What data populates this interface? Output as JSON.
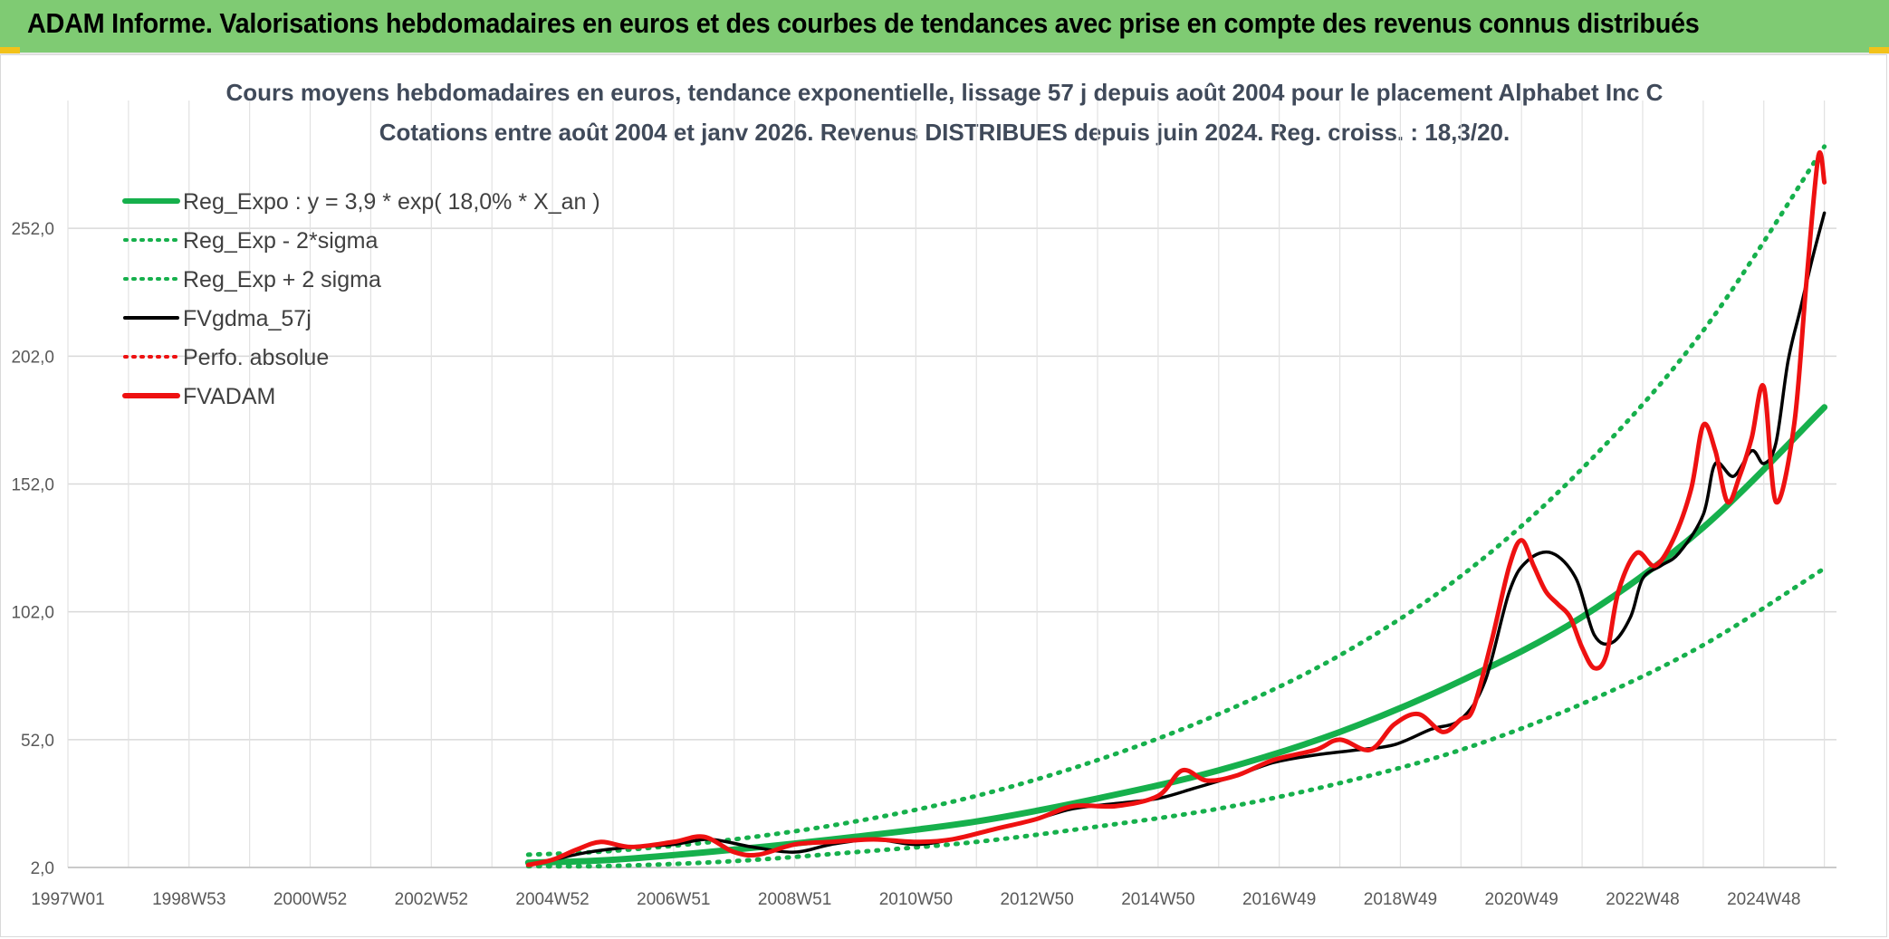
{
  "header": {
    "title": "ADAM Informe. Valorisations hebdomadaires en euros et des courbes de tendances avec prise en compte des revenus connus distribués"
  },
  "colors": {
    "header_bg": "#7fcb73",
    "green": "#16b04c",
    "black": "#000000",
    "red": "#ee1111",
    "corner": "#f2c21a"
  },
  "chart_data": {
    "type": "line",
    "title": "Cours moyens hebdomadaires en euros, tendance exponentielle, lissage 57 j depuis août 2004 pour le placement Alphabet Inc C",
    "subtitle": "Cotations entre août 2004 et janv 2026. Revenus DISTRIBUES depuis juin 2024. Reg. croiss. : 18,3/20.",
    "xlabel": "",
    "ylabel": "",
    "x_range": [
      1997.0,
      2026.2
    ],
    "ylim": [
      2,
      302
    ],
    "y_ticks": [
      2,
      52,
      102,
      152,
      202,
      252
    ],
    "y_tick_labels": [
      "2,0",
      "52,0",
      "102,0",
      "152,0",
      "202,0",
      "252,0"
    ],
    "x_ticks": [
      1997.0,
      1999.0,
      2001.0,
      2003.0,
      2005.0,
      2007.0,
      2009.0,
      2011.0,
      2013.0,
      2015.0,
      2017.0,
      2019.0,
      2021.0,
      2023.0,
      2025.0
    ],
    "x_tick_labels": [
      "1997W01",
      "1998W53",
      "2000W52",
      "2002W52",
      "2004W52",
      "2006W51",
      "2008W51",
      "2010W50",
      "2012W50",
      "2014W50",
      "2016W49",
      "2018W49",
      "2020W49",
      "2022W48",
      "2024W48"
    ],
    "grid": true,
    "legend_position": "top-left",
    "legend": [
      {
        "label": "Reg_Expo : y = 3,9 * exp( 18,0% *  X_an )",
        "color": "#16b04c",
        "style": "solid-thick"
      },
      {
        "label": "Reg_Exp - 2*sigma",
        "color": "#16b04c",
        "style": "dotted"
      },
      {
        "label": "Reg_Exp + 2 sigma",
        "color": "#16b04c",
        "style": "dotted"
      },
      {
        "label": "FVgdma_57j",
        "color": "#000000",
        "style": "solid"
      },
      {
        "label": "Perfo. absolue",
        "color": "#ee1111",
        "style": "dotted"
      },
      {
        "label": "FVADAM",
        "color": "#ee1111",
        "style": "solid-thick"
      }
    ],
    "series": [
      {
        "name": "Reg_Expo",
        "x": [
          2004.6,
          2006,
          2008,
          2010,
          2012,
          2014,
          2016,
          2018,
          2020,
          2022,
          2024,
          2026.0
        ],
        "values": [
          3.9,
          5,
          9,
          14,
          20,
          29,
          40,
          55,
          75,
          100,
          135,
          182
        ]
      },
      {
        "name": "Reg_Exp - 2*sigma",
        "x": [
          2004.6,
          2006,
          2008,
          2010,
          2012,
          2014,
          2016,
          2018,
          2020,
          2022,
          2024,
          2026.0
        ],
        "values": [
          2.5,
          2.6,
          4.5,
          8,
          12,
          18,
          25,
          35,
          48,
          66,
          89,
          119
        ]
      },
      {
        "name": "Reg_Exp + 2 sigma",
        "x": [
          2004.6,
          2006,
          2008,
          2010,
          2012,
          2014,
          2016,
          2018,
          2020,
          2022,
          2024,
          2026.0
        ],
        "values": [
          7,
          8.5,
          13,
          20,
          30,
          44,
          62,
          85,
          116,
          158,
          212,
          284
        ]
      },
      {
        "name": "FVgdma_57j",
        "x": [
          2004.6,
          2005,
          2005.6,
          2006.3,
          2007,
          2007.6,
          2008.3,
          2009,
          2009.6,
          2010.3,
          2011,
          2011.6,
          2012.3,
          2013,
          2013.6,
          2014.3,
          2015,
          2015.6,
          2016.3,
          2016.9,
          2017.6,
          2018.3,
          2018.9,
          2019.5,
          2020.0,
          2020.4,
          2020.8,
          2021.1,
          2021.5,
          2021.9,
          2022.2,
          2022.5,
          2022.8,
          2023.0,
          2023.3,
          2023.6,
          2024.0,
          2024.2,
          2024.5,
          2024.8,
          2025.0,
          2025.2,
          2025.4,
          2025.6,
          2025.8,
          2026.0
        ],
        "values": [
          3,
          5,
          8,
          10,
          11,
          13,
          10,
          8,
          11,
          13,
          11,
          13,
          17,
          21,
          25,
          27,
          29,
          33,
          38,
          43,
          46,
          48,
          50,
          56,
          60,
          75,
          110,
          122,
          125,
          115,
          93,
          90,
          100,
          115,
          120,
          125,
          140,
          160,
          155,
          165,
          160,
          168,
          200,
          220,
          240,
          258
        ]
      },
      {
        "name": "FVADAM",
        "x": [
          2004.6,
          2005,
          2005.4,
          2005.8,
          2006.3,
          2007,
          2007.5,
          2008.0,
          2008.4,
          2009,
          2009.6,
          2010.3,
          2011,
          2011.6,
          2012.3,
          2013,
          2013.6,
          2014.3,
          2015,
          2015.4,
          2015.8,
          2016.3,
          2016.9,
          2017.6,
          2018.0,
          2018.5,
          2018.9,
          2019.3,
          2019.7,
          2020.0,
          2020.2,
          2020.5,
          2020.8,
          2021.0,
          2021.2,
          2021.4,
          2021.6,
          2021.8,
          2022.0,
          2022.2,
          2022.4,
          2022.6,
          2022.9,
          2023.2,
          2023.5,
          2023.8,
          2024.0,
          2024.2,
          2024.4,
          2024.6,
          2024.8,
          2025.0,
          2025.2,
          2025.5,
          2025.7,
          2025.9,
          2026.0
        ],
        "values": [
          3,
          5,
          9,
          12,
          10,
          12,
          14,
          8,
          7,
          11,
          12,
          13,
          12,
          13,
          17,
          21,
          26,
          26,
          30,
          40,
          36,
          38,
          44,
          48,
          52,
          48,
          58,
          62,
          55,
          60,
          64,
          90,
          120,
          130,
          120,
          110,
          105,
          100,
          88,
          80,
          85,
          110,
          125,
          120,
          130,
          150,
          175,
          165,
          145,
          155,
          170,
          190,
          145,
          175,
          230,
          280,
          270
        ]
      }
    ]
  }
}
